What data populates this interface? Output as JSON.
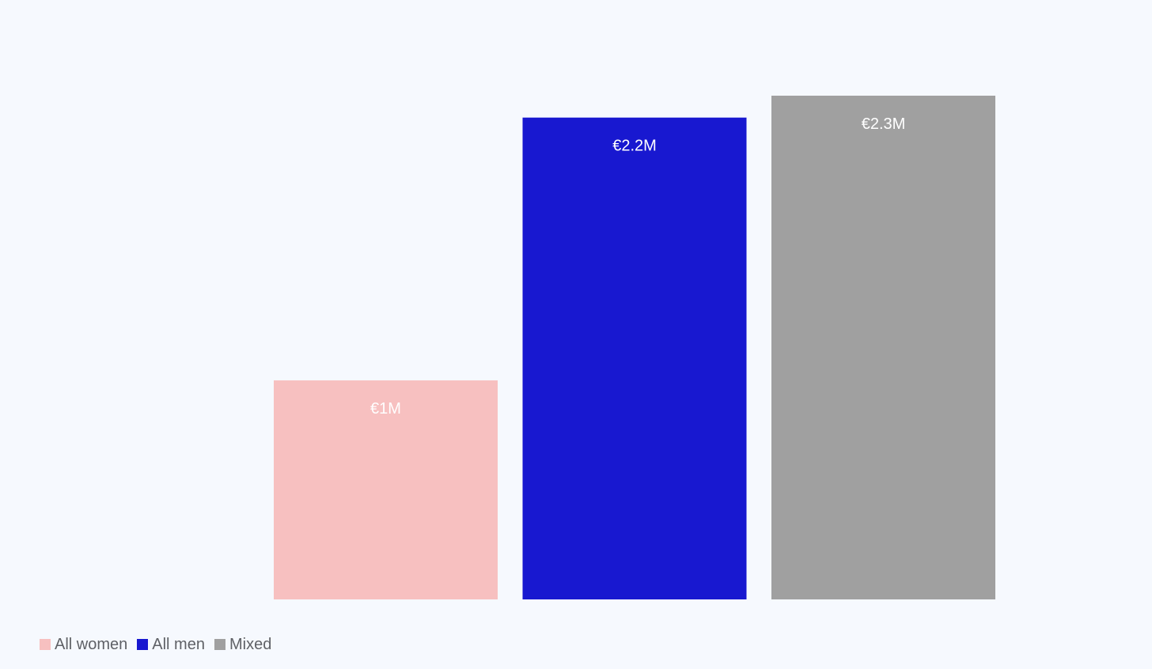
{
  "chart_data": {
    "type": "bar",
    "categories": [
      "All women",
      "All men",
      "Mixed"
    ],
    "values": [
      1.0,
      2.2,
      2.3
    ],
    "value_labels": [
      "€1M",
      "€2.2M",
      "€2.3M"
    ],
    "colors": [
      "#f7c0c0",
      "#1818d0",
      "#a0a0a0"
    ],
    "ylim": [
      0,
      2.3
    ],
    "grid": false,
    "legend": {
      "placement": "bottom-left",
      "entries": [
        {
          "label": "All women",
          "color": "#f7c0c0"
        },
        {
          "label": "All men",
          "color": "#1818d0"
        },
        {
          "label": "Mixed",
          "color": "#a0a0a0"
        }
      ]
    },
    "title": "",
    "xlabel": "",
    "ylabel": ""
  }
}
